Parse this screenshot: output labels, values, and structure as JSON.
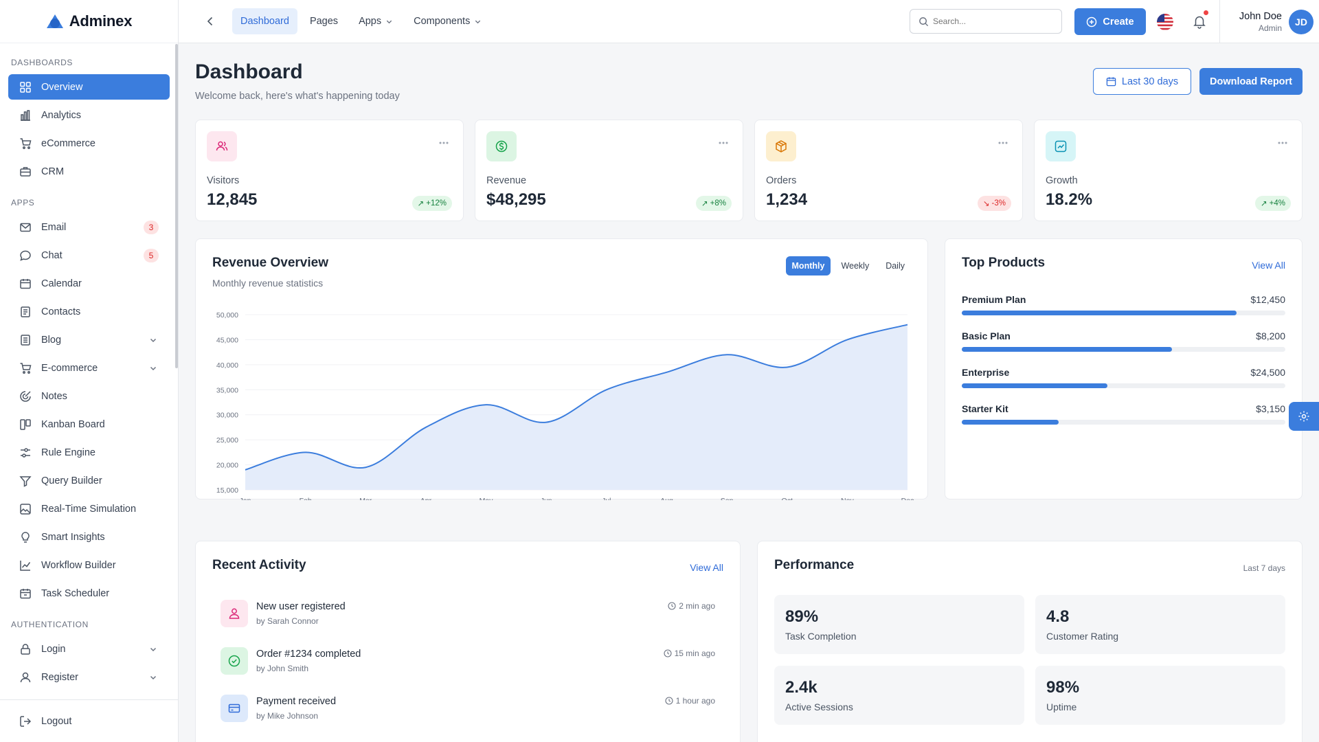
{
  "brand": {
    "name": "Adminex"
  },
  "sidebar": {
    "sections": [
      {
        "title": "DASHBOARDS"
      },
      {
        "title": "APPS"
      },
      {
        "title": "AUTHENTICATION"
      }
    ],
    "dashboards": [
      {
        "label": "Overview",
        "icon": "grid-icon",
        "active": true
      },
      {
        "label": "Analytics",
        "icon": "bar-chart-icon"
      },
      {
        "label": "eCommerce",
        "icon": "cart-icon"
      },
      {
        "label": "CRM",
        "icon": "briefcase-icon"
      }
    ],
    "apps": [
      {
        "label": "Email",
        "icon": "mail-icon",
        "badge": "3"
      },
      {
        "label": "Chat",
        "icon": "chat-icon",
        "badge": "5"
      },
      {
        "label": "Calendar",
        "icon": "calendar-icon"
      },
      {
        "label": "Contacts",
        "icon": "contacts-icon"
      },
      {
        "label": "Blog",
        "icon": "blog-icon",
        "expandable": true
      },
      {
        "label": "E-commerce",
        "icon": "cart-icon",
        "expandable": true
      },
      {
        "label": "Notes",
        "icon": "notes-icon"
      },
      {
        "label": "Kanban Board",
        "icon": "kanban-icon"
      },
      {
        "label": "Rule Engine",
        "icon": "sliders-icon"
      },
      {
        "label": "Query Builder",
        "icon": "funnel-icon"
      },
      {
        "label": "Real-Time Simulation",
        "icon": "image-icon"
      },
      {
        "label": "Smart Insights",
        "icon": "bulb-icon"
      },
      {
        "label": "Workflow Builder",
        "icon": "line-chart-icon"
      },
      {
        "label": "Task Scheduler",
        "icon": "scheduler-icon"
      }
    ],
    "auth": [
      {
        "label": "Login",
        "icon": "lock-icon",
        "expandable": true
      },
      {
        "label": "Register",
        "icon": "user-plus-icon",
        "expandable": true
      }
    ],
    "logout_label": "Logout"
  },
  "topbar": {
    "nav": [
      {
        "label": "Dashboard",
        "active": true
      },
      {
        "label": "Pages"
      },
      {
        "label": "Apps",
        "dropdown": true
      },
      {
        "label": "Components",
        "dropdown": true
      }
    ],
    "search_placeholder": "Search...",
    "create_label": "Create",
    "user": {
      "name": "John Doe",
      "role": "Admin",
      "initials": "JD"
    }
  },
  "header": {
    "title": "Dashboard",
    "subtitle": "Welcome back, here's what's happening today",
    "range_label": "Last 30 days",
    "download_label": "Download Report"
  },
  "stats": [
    {
      "label": "Visitors",
      "value": "12,845",
      "change": "+12%",
      "trend": "up",
      "icon": "users-icon",
      "bg": "#fde7ef",
      "color": "#db2777"
    },
    {
      "label": "Revenue",
      "value": "$48,295",
      "change": "+8%",
      "trend": "up",
      "icon": "dollar-icon",
      "bg": "#dcf5e3",
      "color": "#16a34a"
    },
    {
      "label": "Orders",
      "value": "1,234",
      "change": "-3%",
      "trend": "down",
      "icon": "box-icon",
      "bg": "#fdefcf",
      "color": "#d97706"
    },
    {
      "label": "Growth",
      "value": "18.2%",
      "change": "+4%",
      "trend": "up",
      "icon": "trend-icon",
      "bg": "#d6f5f7",
      "color": "#0891b2"
    }
  ],
  "revenue": {
    "title": "Revenue Overview",
    "subtitle": "Monthly revenue statistics",
    "tabs": [
      {
        "label": "Monthly",
        "active": true
      },
      {
        "label": "Weekly"
      },
      {
        "label": "Daily"
      }
    ]
  },
  "chart_data": {
    "type": "area",
    "title": "Revenue Overview",
    "categories": [
      "Jan",
      "Feb",
      "Mar",
      "Apr",
      "May",
      "Jun",
      "Jul",
      "Aug",
      "Sep",
      "Oct",
      "Nov",
      "Dec"
    ],
    "series": [
      {
        "values": [
          19000,
          22500,
          19500,
          27500,
          32000,
          28500,
          35000,
          38500,
          42000,
          39500,
          45000,
          48000
        ]
      }
    ],
    "y_ticks": [
      "50,000",
      "45,000",
      "40,000",
      "35,000",
      "30,000",
      "25,000",
      "20,000",
      "15,000"
    ],
    "ylim": [
      15000,
      50000
    ],
    "grid": true,
    "colors": {
      "line": "#3b7ddd",
      "fill": "#e4ecfa"
    }
  },
  "top_products": {
    "title": "Top Products",
    "view_all": "View All",
    "items": [
      {
        "name": "Premium Plan",
        "value": "$12,450",
        "progress": 0.85
      },
      {
        "name": "Basic Plan",
        "value": "$8,200",
        "progress": 0.65
      },
      {
        "name": "Enterprise",
        "value": "$24,500",
        "progress": 0.45
      },
      {
        "name": "Starter Kit",
        "value": "$3,150",
        "progress": 0.3
      }
    ]
  },
  "activity": {
    "title": "Recent Activity",
    "view_all": "View All",
    "items": [
      {
        "title": "New user registered",
        "by": "by Sarah Connor",
        "time": "2 min ago",
        "icon": "user-icon",
        "bg": "#fde7ef",
        "color": "#db2777"
      },
      {
        "title": "Order #1234 completed",
        "by": "by John Smith",
        "time": "15 min ago",
        "icon": "check-circle-icon",
        "bg": "#dcf5e3",
        "color": "#16a34a"
      },
      {
        "title": "Payment received",
        "by": "by Mike Johnson",
        "time": "1 hour ago",
        "icon": "card-icon",
        "bg": "#dde9fb",
        "color": "#2f6bd8"
      }
    ]
  },
  "performance": {
    "title": "Performance",
    "range": "Last 7 days",
    "metrics": [
      {
        "value": "89%",
        "label": "Task Completion"
      },
      {
        "value": "4.8",
        "label": "Customer Rating"
      },
      {
        "value": "2.4k",
        "label": "Active Sessions"
      },
      {
        "value": "98%",
        "label": "Uptime"
      }
    ]
  },
  "colors": {
    "accent": "#3b7ddd",
    "danger": "#ef4444",
    "success": "#16a34a"
  }
}
